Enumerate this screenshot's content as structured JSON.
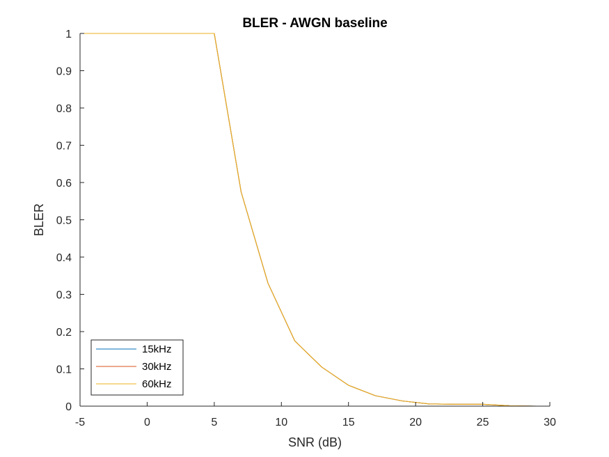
{
  "chart_data": {
    "type": "line",
    "title": "BLER - AWGN baseline",
    "xlabel": "SNR (dB)",
    "ylabel": "BLER",
    "xlim": [
      -5,
      30
    ],
    "ylim": [
      0,
      1
    ],
    "xticks": [
      -5,
      0,
      5,
      10,
      15,
      20,
      25,
      30
    ],
    "yticks": [
      0,
      0.1,
      0.2,
      0.3,
      0.4,
      0.5,
      0.6,
      0.7,
      0.8,
      0.9,
      1
    ],
    "xtick_labels": [
      "-5",
      "0",
      "5",
      "10",
      "15",
      "20",
      "25",
      "30"
    ],
    "ytick_labels": [
      "0",
      "0.1",
      "0.2",
      "0.3",
      "0.4",
      "0.5",
      "0.6",
      "0.7",
      "0.8",
      "0.9",
      "1"
    ],
    "grid": false,
    "legend_position": "bottom-left",
    "x": [
      -5,
      -3,
      -1,
      1,
      3,
      5,
      7,
      9,
      11,
      13,
      15,
      17,
      19,
      21,
      23,
      25,
      27,
      29
    ],
    "series": [
      {
        "name": "15kHz",
        "color": "#0072BD",
        "values": [
          1,
          1,
          1,
          1,
          1,
          1,
          0.575,
          0.33,
          0.175,
          0.105,
          0.056,
          0.028,
          0.014,
          0.006,
          0.005,
          0.005,
          0.001,
          0
        ]
      },
      {
        "name": "30kHz",
        "color": "#D95319",
        "values": [
          1,
          1,
          1,
          1,
          1,
          1,
          0.575,
          0.33,
          0.175,
          0.105,
          0.056,
          0.028,
          0.014,
          0.006,
          0.005,
          0.005,
          0.001,
          0
        ]
      },
      {
        "name": "60kHz",
        "color": "#EDB120",
        "values": [
          1,
          1,
          1,
          1,
          1,
          1,
          0.575,
          0.33,
          0.175,
          0.105,
          0.056,
          0.028,
          0.014,
          0.006,
          0.005,
          0.005,
          0.001,
          0
        ]
      }
    ]
  }
}
